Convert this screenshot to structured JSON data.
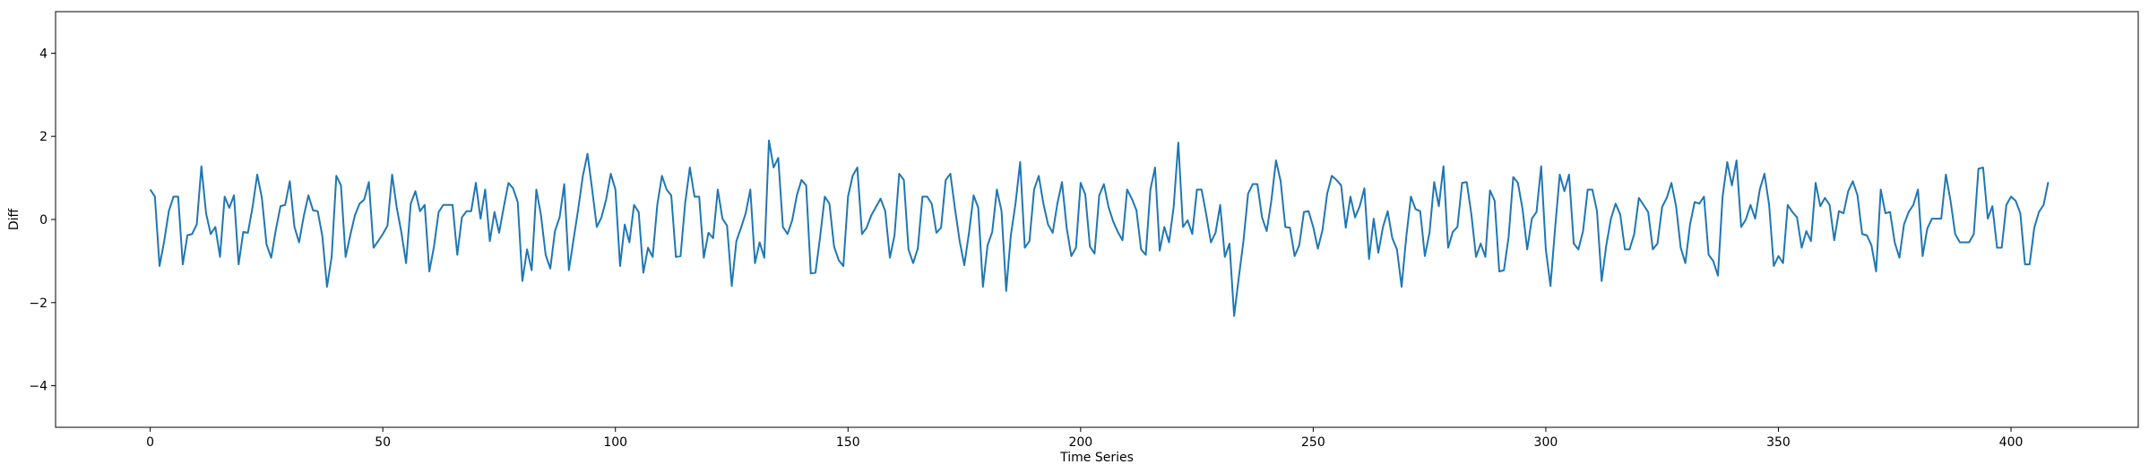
{
  "chart_data": {
    "type": "line",
    "title": "",
    "xlabel": "Time Series",
    "ylabel": "Diff",
    "xlim": [
      -20.35,
      427.35
    ],
    "ylim": [
      -5,
      5
    ],
    "xticks": [
      0,
      50,
      100,
      150,
      200,
      250,
      300,
      350,
      400
    ],
    "yticks": [
      -4,
      -2,
      0,
      2,
      4
    ],
    "grid": false,
    "legend": "none",
    "series": [
      {
        "color": "#1f77b4",
        "x_start": 0,
        "x_step": 1,
        "y": [
          0.72,
          0.55,
          -1.12,
          -0.52,
          0.2,
          0.55,
          0.55,
          -1.08,
          -0.38,
          -0.35,
          -0.12,
          1.28,
          0.15,
          -0.35,
          -0.18,
          -0.9,
          0.55,
          0.28,
          0.58,
          -1.08,
          -0.3,
          -0.32,
          0.3,
          1.08,
          0.52,
          -0.6,
          -0.92,
          -0.25,
          0.32,
          0.35,
          0.92,
          -0.18,
          -0.55,
          0.08,
          0.58,
          0.22,
          0.2,
          -0.4,
          -1.62,
          -0.9,
          1.05,
          0.82,
          -0.9,
          -0.38,
          0.1,
          0.38,
          0.48,
          0.9,
          -0.68,
          -0.52,
          -0.35,
          -0.15,
          1.08,
          0.28,
          -0.32,
          -1.05,
          0.38,
          0.68,
          0.2,
          0.35,
          -1.25,
          -0.65,
          0.18,
          0.35,
          0.35,
          0.35,
          -0.85,
          0.05,
          0.2,
          0.2,
          0.88,
          0.02,
          0.72,
          -0.52,
          0.18,
          -0.32,
          0.3,
          0.88,
          0.75,
          0.42,
          -1.48,
          -0.72,
          -1.22,
          0.72,
          0.1,
          -0.85,
          -1.18,
          -0.28,
          0.05,
          0.85,
          -1.22,
          -0.48,
          0.25,
          1.05,
          1.58,
          0.72,
          -0.18,
          0.05,
          0.48,
          1.1,
          0.72,
          -1.12,
          -0.12,
          -0.55,
          0.35,
          0.18,
          -1.28,
          -0.68,
          -0.9,
          0.35,
          1.05,
          0.72,
          0.58,
          -0.9,
          -0.88,
          0.4,
          1.25,
          0.55,
          0.55,
          -0.92,
          -0.32,
          -0.45,
          0.72,
          0.02,
          -0.15,
          -1.6,
          -0.52,
          -0.2,
          0.15,
          0.72,
          -1.05,
          -0.55,
          -0.92,
          1.9,
          1.25,
          1.48,
          -0.18,
          -0.35,
          -0.02,
          0.58,
          0.95,
          0.82,
          -1.3,
          -1.28,
          -0.42,
          0.55,
          0.38,
          -0.65,
          -0.98,
          -1.12,
          0.55,
          1.05,
          1.25,
          -0.35,
          -0.2,
          0.1,
          0.3,
          0.5,
          0.2,
          -0.92,
          -0.38,
          1.1,
          0.95,
          -0.72,
          -1.05,
          -0.7,
          0.55,
          0.55,
          0.38,
          -0.32,
          -0.2,
          0.95,
          1.1,
          0.25,
          -0.52,
          -1.1,
          -0.32,
          0.58,
          0.28,
          -1.62,
          -0.62,
          -0.3,
          0.72,
          0.2,
          -1.72,
          -0.38,
          0.38,
          1.38,
          -0.68,
          -0.52,
          0.72,
          1.05,
          0.38,
          -0.12,
          -0.32,
          0.38,
          0.9,
          -0.2,
          -0.88,
          -0.68,
          0.88,
          0.6,
          -0.65,
          -0.82,
          0.58,
          0.85,
          0.3,
          -0.05,
          -0.3,
          -0.5,
          0.72,
          0.5,
          0.22,
          -0.72,
          -0.85,
          0.72,
          1.25,
          -0.75,
          -0.18,
          -0.55,
          0.3,
          1.85,
          -0.18,
          -0.02,
          -0.35,
          0.72,
          0.72,
          0.12,
          -0.55,
          -0.32,
          0.35,
          -0.9,
          -0.58,
          -2.32,
          -1.4,
          -0.52,
          0.62,
          0.85,
          0.85,
          0.05,
          -0.28,
          0.45,
          1.42,
          0.92,
          -0.18,
          -0.2,
          -0.88,
          -0.62,
          0.18,
          0.2,
          -0.18,
          -0.7,
          -0.25,
          0.62,
          1.05,
          0.95,
          0.82,
          -0.2,
          0.55,
          0.05,
          0.32,
          0.75,
          -0.95,
          0.02,
          -0.8,
          -0.18,
          0.2,
          -0.45,
          -0.72,
          -1.62,
          -0.42,
          0.55,
          0.25,
          0.2,
          -0.88,
          -0.32,
          0.9,
          0.32,
          1.28,
          -0.68,
          -0.3,
          -0.18,
          0.88,
          0.9,
          0.12,
          -0.9,
          -0.58,
          -0.9,
          0.7,
          0.45,
          -1.25,
          -1.22,
          -0.42,
          1.02,
          0.88,
          0.25,
          -0.72,
          0.02,
          0.18,
          1.28,
          -0.72,
          -1.6,
          -0.2,
          1.08,
          0.68,
          1.08,
          -0.58,
          -0.72,
          -0.28,
          0.72,
          0.72,
          0.2,
          -1.48,
          -0.62,
          0.02,
          0.38,
          0.12,
          -0.72,
          -0.72,
          -0.35,
          0.52,
          0.35,
          0.18,
          -0.72,
          -0.58,
          0.3,
          0.52,
          0.88,
          0.32,
          -0.68,
          -1.05,
          -0.12,
          0.42,
          0.38,
          0.55,
          -0.85,
          -1.0,
          -1.35,
          0.55,
          1.38,
          0.82,
          1.42,
          -0.18,
          0.0,
          0.35,
          0.02,
          0.72,
          1.1,
          0.35,
          -1.12,
          -0.88,
          -1.05,
          0.35,
          0.18,
          0.05,
          -0.68,
          -0.28,
          -0.52,
          0.88,
          0.32,
          0.52,
          0.35,
          -0.5,
          0.2,
          0.15,
          0.68,
          0.92,
          0.58,
          -0.35,
          -0.38,
          -0.62,
          -1.25,
          0.72,
          0.15,
          0.18,
          -0.55,
          -0.92,
          -0.12,
          0.18,
          0.35,
          0.72,
          -0.88,
          -0.22,
          0.02,
          0.02,
          0.02,
          1.08,
          0.45,
          -0.35,
          -0.55,
          -0.55,
          -0.55,
          -0.35,
          1.22,
          1.25,
          0.02,
          0.32,
          -0.68,
          -0.68,
          0.35,
          0.55,
          0.45,
          0.15,
          -1.08,
          -1.08,
          -0.2,
          0.18,
          0.35,
          0.9
        ]
      }
    ]
  }
}
